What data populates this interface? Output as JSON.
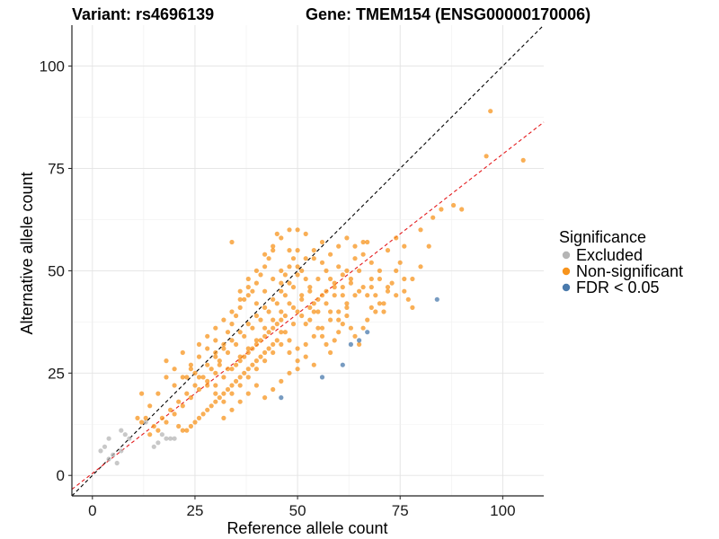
{
  "chart_data": {
    "type": "scatter",
    "title_left": "Variant: rs4696139",
    "title_right": "Gene: TMEM154 (ENSG00000170006)",
    "xlabel": "Reference allele count",
    "ylabel": "Alternative allele count",
    "xlim": [
      -5,
      110
    ],
    "ylim": [
      -5,
      110
    ],
    "x_ticks": [
      0,
      25,
      50,
      75,
      100
    ],
    "y_ticks": [
      0,
      25,
      50,
      75,
      100
    ],
    "grid": true,
    "legend": {
      "title": "Significance",
      "position": "right",
      "entries": [
        {
          "label": "Excluded",
          "color": "#b5b5b5"
        },
        {
          "label": "Non-significant",
          "color": "#f7941d"
        },
        {
          "label": "FDR < 0.05",
          "color": "#4a7aac"
        }
      ]
    },
    "reference_lines": [
      {
        "name": "identity",
        "slope": 1,
        "intercept": 0,
        "color": "#000000",
        "style": "dashed"
      },
      {
        "name": "fit",
        "slope": 0.78,
        "intercept": 0.5,
        "color": "#e41a1c",
        "style": "dashed"
      }
    ],
    "series": [
      {
        "name": "Excluded",
        "color": "#b5b5b5",
        "points": [
          [
            2,
            6
          ],
          [
            3,
            7
          ],
          [
            4,
            9
          ],
          [
            4,
            4
          ],
          [
            5,
            5
          ],
          [
            6,
            3
          ],
          [
            7,
            6
          ],
          [
            7,
            11
          ],
          [
            8,
            10
          ],
          [
            9,
            9
          ],
          [
            13,
            13
          ],
          [
            15,
            7
          ],
          [
            16,
            8
          ],
          [
            17,
            10
          ],
          [
            18,
            9
          ],
          [
            19,
            9
          ],
          [
            20,
            9
          ]
        ]
      },
      {
        "name": "Non-significant",
        "color": "#f7941d",
        "points": [
          [
            97,
            89
          ],
          [
            96,
            78
          ],
          [
            105,
            77
          ],
          [
            90,
            65
          ],
          [
            85,
            65
          ],
          [
            88,
            66
          ],
          [
            83,
            63
          ],
          [
            80,
            60
          ],
          [
            78,
            48
          ],
          [
            82,
            56
          ],
          [
            76,
            56
          ],
          [
            74,
            58
          ],
          [
            72,
            55
          ],
          [
            70,
            50
          ],
          [
            75,
            52
          ],
          [
            80,
            51
          ],
          [
            68,
            46
          ],
          [
            65,
            45
          ],
          [
            62,
            41
          ],
          [
            60,
            38
          ],
          [
            58,
            40
          ],
          [
            56,
            44
          ],
          [
            54,
            42
          ],
          [
            52,
            37
          ],
          [
            50,
            40
          ],
          [
            48,
            42
          ],
          [
            46,
            38
          ],
          [
            44,
            36
          ],
          [
            42,
            34
          ],
          [
            40,
            32
          ],
          [
            38,
            30
          ],
          [
            36,
            28
          ],
          [
            34,
            57
          ],
          [
            36,
            45
          ],
          [
            38,
            48
          ],
          [
            40,
            42
          ],
          [
            42,
            45
          ],
          [
            44,
            48
          ],
          [
            46,
            50
          ],
          [
            48,
            55
          ],
          [
            50,
            60
          ],
          [
            52,
            59
          ],
          [
            54,
            53
          ],
          [
            56,
            57
          ],
          [
            58,
            48
          ],
          [
            60,
            51
          ],
          [
            62,
            50
          ],
          [
            64,
            53
          ],
          [
            66,
            57
          ],
          [
            67,
            57
          ],
          [
            63,
            47
          ],
          [
            61,
            44
          ],
          [
            59,
            46
          ],
          [
            57,
            50
          ],
          [
            55,
            48
          ],
          [
            53,
            46
          ],
          [
            51,
            44
          ],
          [
            49,
            46
          ],
          [
            47,
            44
          ],
          [
            45,
            42
          ],
          [
            43,
            40
          ],
          [
            41,
            38
          ],
          [
            39,
            36
          ],
          [
            37,
            34
          ],
          [
            35,
            32
          ],
          [
            33,
            30
          ],
          [
            31,
            28
          ],
          [
            29,
            26
          ],
          [
            27,
            24
          ],
          [
            25,
            22
          ],
          [
            23,
            20
          ],
          [
            21,
            18
          ],
          [
            19,
            16
          ],
          [
            17,
            14
          ],
          [
            15,
            12
          ],
          [
            13,
            14
          ],
          [
            12,
            13
          ],
          [
            11,
            14
          ],
          [
            12,
            20
          ],
          [
            14,
            17
          ],
          [
            16,
            20
          ],
          [
            18,
            24
          ],
          [
            18,
            28
          ],
          [
            20,
            26
          ],
          [
            22,
            30
          ],
          [
            23,
            24
          ],
          [
            24,
            27
          ],
          [
            25,
            25
          ],
          [
            26,
            29
          ],
          [
            28,
            31
          ],
          [
            30,
            33
          ],
          [
            32,
            32
          ],
          [
            33,
            35
          ],
          [
            34,
            37
          ],
          [
            35,
            39
          ],
          [
            36,
            41
          ],
          [
            37,
            43
          ],
          [
            38,
            44
          ],
          [
            39,
            45
          ],
          [
            40,
            47
          ],
          [
            41,
            49
          ],
          [
            42,
            51
          ],
          [
            43,
            53
          ],
          [
            44,
            55
          ],
          [
            45,
            59
          ],
          [
            46,
            47
          ],
          [
            47,
            49
          ],
          [
            48,
            51
          ],
          [
            49,
            53
          ],
          [
            50,
            55
          ],
          [
            51,
            50
          ],
          [
            52,
            48
          ],
          [
            53,
            45
          ],
          [
            54,
            40
          ],
          [
            55,
            36
          ],
          [
            56,
            34
          ],
          [
            57,
            32
          ],
          [
            58,
            30
          ],
          [
            59,
            33
          ],
          [
            60,
            35
          ],
          [
            61,
            37
          ],
          [
            62,
            39
          ],
          [
            63,
            36
          ],
          [
            64,
            34
          ],
          [
            65,
            32
          ],
          [
            66,
            36
          ],
          [
            67,
            38
          ],
          [
            68,
            41
          ],
          [
            69,
            44
          ],
          [
            70,
            42
          ],
          [
            71,
            40
          ],
          [
            72,
            45
          ],
          [
            73,
            47
          ],
          [
            74,
            50
          ],
          [
            76,
            45
          ],
          [
            77,
            43
          ],
          [
            78,
            41
          ],
          [
            46,
            35
          ],
          [
            44,
            32
          ],
          [
            42,
            30
          ],
          [
            40,
            28
          ],
          [
            38,
            26
          ],
          [
            36,
            24
          ],
          [
            34,
            22
          ],
          [
            32,
            20
          ],
          [
            30,
            18
          ],
          [
            28,
            16
          ],
          [
            26,
            14
          ],
          [
            24,
            12
          ],
          [
            22,
            11
          ],
          [
            21,
            12
          ],
          [
            23,
            11
          ],
          [
            25,
            13
          ],
          [
            27,
            15
          ],
          [
            29,
            17
          ],
          [
            31,
            19
          ],
          [
            33,
            21
          ],
          [
            35,
            23
          ],
          [
            37,
            25
          ],
          [
            39,
            27
          ],
          [
            41,
            29
          ],
          [
            43,
            31
          ],
          [
            45,
            33
          ],
          [
            47,
            35
          ],
          [
            49,
            37
          ],
          [
            51,
            39
          ],
          [
            53,
            41
          ],
          [
            55,
            43
          ],
          [
            57,
            45
          ],
          [
            59,
            47
          ],
          [
            61,
            49
          ],
          [
            30,
            22
          ],
          [
            32,
            24
          ],
          [
            34,
            26
          ],
          [
            36,
            29
          ],
          [
            38,
            31
          ],
          [
            40,
            33
          ],
          [
            42,
            36
          ],
          [
            44,
            38
          ],
          [
            46,
            40
          ],
          [
            48,
            33
          ],
          [
            50,
            31
          ],
          [
            52,
            29
          ],
          [
            54,
            27
          ],
          [
            50,
            26
          ],
          [
            48,
            25
          ],
          [
            46,
            23
          ],
          [
            44,
            21
          ],
          [
            42,
            19
          ],
          [
            40,
            22
          ],
          [
            38,
            20
          ],
          [
            36,
            18
          ],
          [
            34,
            16
          ],
          [
            32,
            14
          ],
          [
            30,
            25
          ],
          [
            28,
            23
          ],
          [
            26,
            21
          ],
          [
            24,
            19
          ],
          [
            22,
            17
          ],
          [
            20,
            15
          ],
          [
            18,
            13
          ],
          [
            16,
            11
          ],
          [
            14,
            10
          ],
          [
            28,
            27
          ],
          [
            30,
            29
          ],
          [
            32,
            31
          ],
          [
            34,
            33
          ],
          [
            36,
            35
          ],
          [
            38,
            37
          ],
          [
            40,
            39
          ],
          [
            42,
            41
          ],
          [
            44,
            43
          ],
          [
            46,
            45
          ],
          [
            48,
            47
          ],
          [
            50,
            49
          ],
          [
            26,
            32
          ],
          [
            28,
            34
          ],
          [
            30,
            36
          ],
          [
            32,
            38
          ],
          [
            34,
            40
          ],
          [
            36,
            43
          ],
          [
            38,
            46
          ],
          [
            40,
            50
          ],
          [
            42,
            54
          ],
          [
            44,
            56
          ],
          [
            46,
            58
          ],
          [
            48,
            60
          ],
          [
            50,
            51
          ],
          [
            52,
            53
          ],
          [
            54,
            55
          ],
          [
            56,
            52
          ],
          [
            58,
            54
          ],
          [
            60,
            56
          ],
          [
            62,
            58
          ],
          [
            64,
            56
          ],
          [
            66,
            54
          ],
          [
            68,
            52
          ],
          [
            70,
            48
          ],
          [
            72,
            46
          ],
          [
            74,
            44
          ],
          [
            76,
            48
          ],
          [
            20,
            22
          ],
          [
            22,
            24
          ],
          [
            24,
            26
          ],
          [
            26,
            24
          ],
          [
            28,
            22
          ],
          [
            30,
            20
          ],
          [
            32,
            18
          ],
          [
            34,
            20
          ],
          [
            36,
            22
          ],
          [
            38,
            24
          ],
          [
            40,
            26
          ],
          [
            42,
            28
          ],
          [
            44,
            30
          ],
          [
            46,
            32
          ],
          [
            48,
            30
          ],
          [
            50,
            28
          ],
          [
            52,
            32
          ],
          [
            54,
            34
          ],
          [
            56,
            36
          ],
          [
            58,
            38
          ],
          [
            60,
            40
          ],
          [
            62,
            42
          ],
          [
            64,
            44
          ],
          [
            66,
            46
          ],
          [
            68,
            48
          ],
          [
            30,
            30
          ],
          [
            31,
            27
          ],
          [
            33,
            26
          ],
          [
            35,
            27
          ],
          [
            37,
            29
          ],
          [
            39,
            31
          ],
          [
            41,
            33
          ],
          [
            43,
            35
          ],
          [
            45,
            37
          ],
          [
            47,
            39
          ],
          [
            49,
            41
          ],
          [
            51,
            43
          ],
          [
            53,
            38
          ],
          [
            55,
            40
          ],
          [
            57,
            42
          ],
          [
            59,
            44
          ],
          [
            61,
            46
          ],
          [
            63,
            48
          ],
          [
            65,
            50
          ],
          [
            67,
            44
          ],
          [
            69,
            40
          ],
          [
            71,
            42
          ]
        ]
      },
      {
        "name": "FDR < 0.05",
        "color": "#4a7aac",
        "points": [
          [
            84,
            43
          ],
          [
            67,
            35
          ],
          [
            65,
            33
          ],
          [
            63,
            32
          ],
          [
            61,
            27
          ],
          [
            56,
            24
          ],
          [
            46,
            19
          ]
        ]
      }
    ]
  }
}
